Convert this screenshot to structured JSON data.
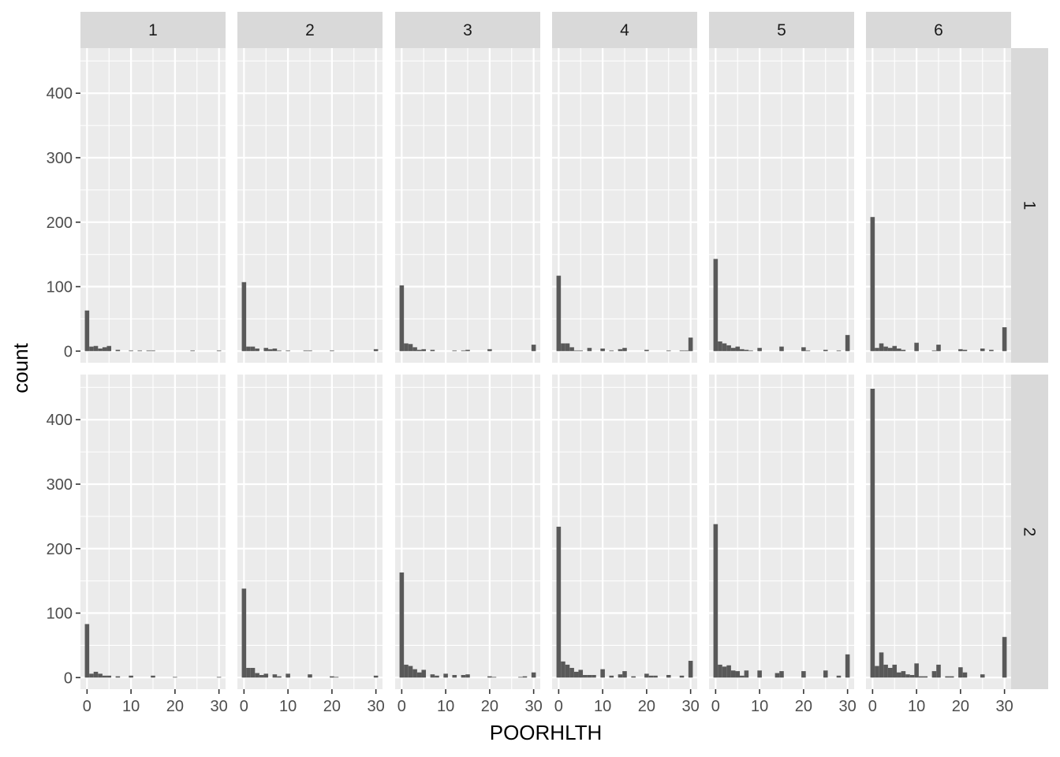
{
  "chart_data": {
    "type": "bar",
    "xlabel": "POORHLTH",
    "ylabel": "count",
    "xlim": [
      -1.5,
      31.5
    ],
    "ylim": [
      -18,
      470
    ],
    "x_ticks": [
      0,
      10,
      20,
      30
    ],
    "y_ticks": [
      0,
      100,
      200,
      300,
      400
    ],
    "col_facets": [
      "1",
      "2",
      "3",
      "4",
      "5",
      "6"
    ],
    "row_facets": [
      "1",
      "2"
    ],
    "bin_width": 1,
    "bar_color": "#595959",
    "panel_background": "#ebebeb",
    "strip_background": "#d9d9d9",
    "grid": true,
    "panels": [
      {
        "row": "1",
        "col": "1",
        "bins": [
          [
            0,
            63
          ],
          [
            1,
            7
          ],
          [
            2,
            8
          ],
          [
            3,
            4
          ],
          [
            4,
            6
          ],
          [
            5,
            8
          ],
          [
            7,
            2
          ],
          [
            10,
            1
          ],
          [
            12,
            1
          ],
          [
            14,
            1
          ],
          [
            15,
            1
          ],
          [
            24,
            1
          ],
          [
            30,
            1
          ]
        ]
      },
      {
        "row": "1",
        "col": "2",
        "bins": [
          [
            0,
            107
          ],
          [
            1,
            7
          ],
          [
            2,
            7
          ],
          [
            3,
            4
          ],
          [
            5,
            5
          ],
          [
            6,
            3
          ],
          [
            7,
            4
          ],
          [
            8,
            1
          ],
          [
            10,
            1
          ],
          [
            14,
            1
          ],
          [
            15,
            1
          ],
          [
            20,
            1
          ],
          [
            30,
            3
          ]
        ]
      },
      {
        "row": "1",
        "col": "3",
        "bins": [
          [
            0,
            102
          ],
          [
            1,
            12
          ],
          [
            2,
            11
          ],
          [
            3,
            6
          ],
          [
            4,
            2
          ],
          [
            5,
            3
          ],
          [
            7,
            2
          ],
          [
            12,
            1
          ],
          [
            14,
            1
          ],
          [
            15,
            2
          ],
          [
            20,
            3
          ],
          [
            30,
            10
          ]
        ]
      },
      {
        "row": "1",
        "col": "4",
        "bins": [
          [
            0,
            117
          ],
          [
            1,
            12
          ],
          [
            2,
            12
          ],
          [
            3,
            6
          ],
          [
            4,
            1
          ],
          [
            5,
            1
          ],
          [
            7,
            5
          ],
          [
            10,
            4
          ],
          [
            12,
            1
          ],
          [
            14,
            3
          ],
          [
            15,
            5
          ],
          [
            20,
            2
          ],
          [
            25,
            1
          ],
          [
            28,
            1
          ],
          [
            29,
            1
          ],
          [
            30,
            21
          ]
        ]
      },
      {
        "row": "1",
        "col": "5",
        "bins": [
          [
            0,
            143
          ],
          [
            1,
            15
          ],
          [
            2,
            12
          ],
          [
            3,
            9
          ],
          [
            4,
            5
          ],
          [
            5,
            7
          ],
          [
            6,
            3
          ],
          [
            7,
            2
          ],
          [
            8,
            1
          ],
          [
            10,
            5
          ],
          [
            15,
            7
          ],
          [
            20,
            6
          ],
          [
            21,
            1
          ],
          [
            25,
            2
          ],
          [
            28,
            1
          ],
          [
            30,
            25
          ]
        ]
      },
      {
        "row": "1",
        "col": "6",
        "bins": [
          [
            0,
            208
          ],
          [
            1,
            5
          ],
          [
            2,
            12
          ],
          [
            3,
            7
          ],
          [
            4,
            5
          ],
          [
            5,
            8
          ],
          [
            6,
            4
          ],
          [
            7,
            2
          ],
          [
            10,
            13
          ],
          [
            14,
            1
          ],
          [
            15,
            10
          ],
          [
            20,
            3
          ],
          [
            21,
            2
          ],
          [
            25,
            4
          ],
          [
            27,
            2
          ],
          [
            30,
            37
          ]
        ]
      },
      {
        "row": "2",
        "col": "1",
        "bins": [
          [
            0,
            83
          ],
          [
            1,
            6
          ],
          [
            2,
            9
          ],
          [
            3,
            6
          ],
          [
            4,
            3
          ],
          [
            5,
            3
          ],
          [
            7,
            2
          ],
          [
            10,
            3
          ],
          [
            15,
            3
          ],
          [
            20,
            1
          ],
          [
            30,
            1
          ]
        ]
      },
      {
        "row": "2",
        "col": "2",
        "bins": [
          [
            0,
            138
          ],
          [
            1,
            15
          ],
          [
            2,
            15
          ],
          [
            3,
            7
          ],
          [
            4,
            4
          ],
          [
            5,
            6
          ],
          [
            7,
            5
          ],
          [
            8,
            2
          ],
          [
            10,
            6
          ],
          [
            15,
            5
          ],
          [
            20,
            2
          ],
          [
            21,
            1
          ],
          [
            30,
            3
          ]
        ]
      },
      {
        "row": "2",
        "col": "3",
        "bins": [
          [
            0,
            163
          ],
          [
            1,
            20
          ],
          [
            2,
            18
          ],
          [
            3,
            13
          ],
          [
            4,
            8
          ],
          [
            5,
            12
          ],
          [
            7,
            5
          ],
          [
            8,
            3
          ],
          [
            10,
            6
          ],
          [
            12,
            4
          ],
          [
            14,
            4
          ],
          [
            15,
            5
          ],
          [
            20,
            2
          ],
          [
            21,
            1
          ],
          [
            27,
            1
          ],
          [
            28,
            2
          ],
          [
            30,
            8
          ]
        ]
      },
      {
        "row": "2",
        "col": "4",
        "bins": [
          [
            0,
            234
          ],
          [
            1,
            25
          ],
          [
            2,
            20
          ],
          [
            3,
            15
          ],
          [
            4,
            9
          ],
          [
            5,
            12
          ],
          [
            6,
            4
          ],
          [
            7,
            4
          ],
          [
            8,
            4
          ],
          [
            10,
            13
          ],
          [
            12,
            3
          ],
          [
            14,
            5
          ],
          [
            15,
            10
          ],
          [
            17,
            2
          ],
          [
            20,
            6
          ],
          [
            21,
            3
          ],
          [
            22,
            3
          ],
          [
            25,
            4
          ],
          [
            28,
            3
          ],
          [
            30,
            26
          ]
        ]
      },
      {
        "row": "2",
        "col": "5",
        "bins": [
          [
            0,
            238
          ],
          [
            1,
            20
          ],
          [
            2,
            17
          ],
          [
            3,
            19
          ],
          [
            4,
            11
          ],
          [
            5,
            10
          ],
          [
            6,
            3
          ],
          [
            7,
            11
          ],
          [
            10,
            11
          ],
          [
            14,
            7
          ],
          [
            15,
            10
          ],
          [
            20,
            10
          ],
          [
            25,
            11
          ],
          [
            28,
            3
          ],
          [
            30,
            36
          ]
        ]
      },
      {
        "row": "2",
        "col": "6",
        "bins": [
          [
            0,
            448
          ],
          [
            1,
            18
          ],
          [
            2,
            39
          ],
          [
            3,
            20
          ],
          [
            4,
            15
          ],
          [
            5,
            20
          ],
          [
            6,
            8
          ],
          [
            7,
            10
          ],
          [
            8,
            5
          ],
          [
            9,
            4
          ],
          [
            10,
            22
          ],
          [
            11,
            2
          ],
          [
            12,
            2
          ],
          [
            14,
            10
          ],
          [
            15,
            20
          ],
          [
            17,
            2
          ],
          [
            18,
            2
          ],
          [
            20,
            16
          ],
          [
            21,
            8
          ],
          [
            25,
            5
          ],
          [
            30,
            63
          ]
        ]
      }
    ]
  }
}
